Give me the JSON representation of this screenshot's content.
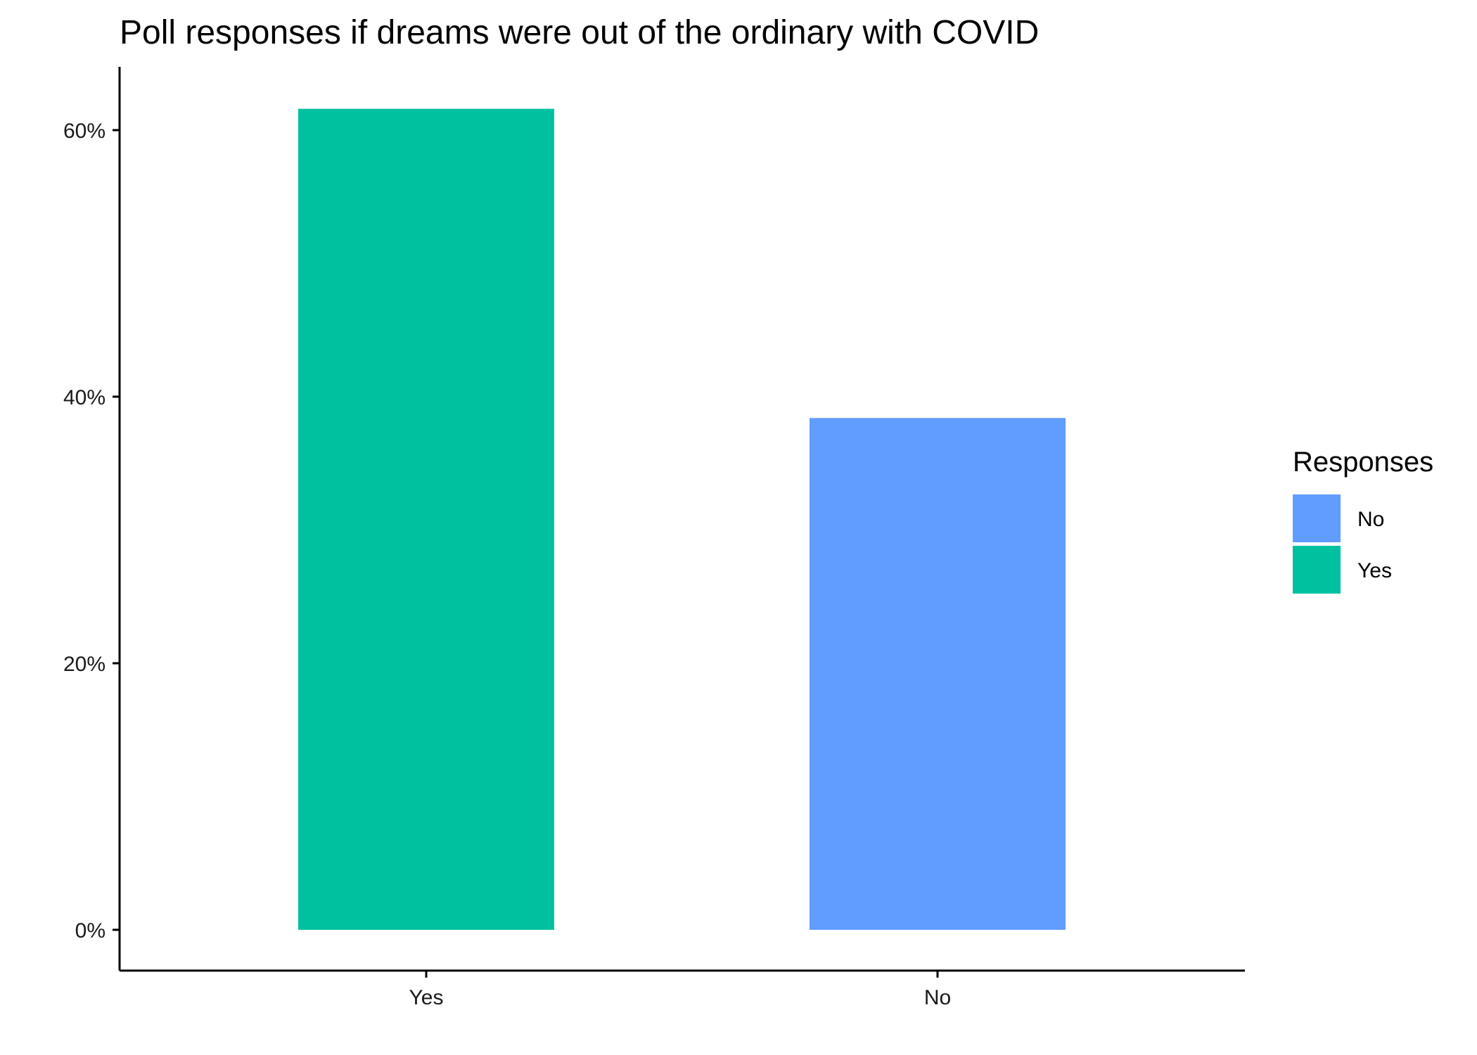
{
  "chart_data": {
    "type": "bar",
    "title": "Poll responses if dreams were out of the ordinary with COVID",
    "xlabel": "",
    "ylabel": "",
    "categories": [
      "Yes",
      "No"
    ],
    "values": [
      61.6,
      38.4
    ],
    "bar_colors": [
      "#00C19F",
      "#619CFF"
    ],
    "y_unit": "%",
    "ylim": [
      -3,
      65
    ],
    "y_ticks": [
      0,
      20,
      40,
      60
    ],
    "y_tick_labels": [
      "0%",
      "20%",
      "40%",
      "60%"
    ],
    "grid": false,
    "legend": {
      "title": "Responses",
      "placement": "right",
      "entries": [
        {
          "label": "No",
          "color": "#619CFF"
        },
        {
          "label": "Yes",
          "color": "#00C19F"
        }
      ]
    }
  }
}
